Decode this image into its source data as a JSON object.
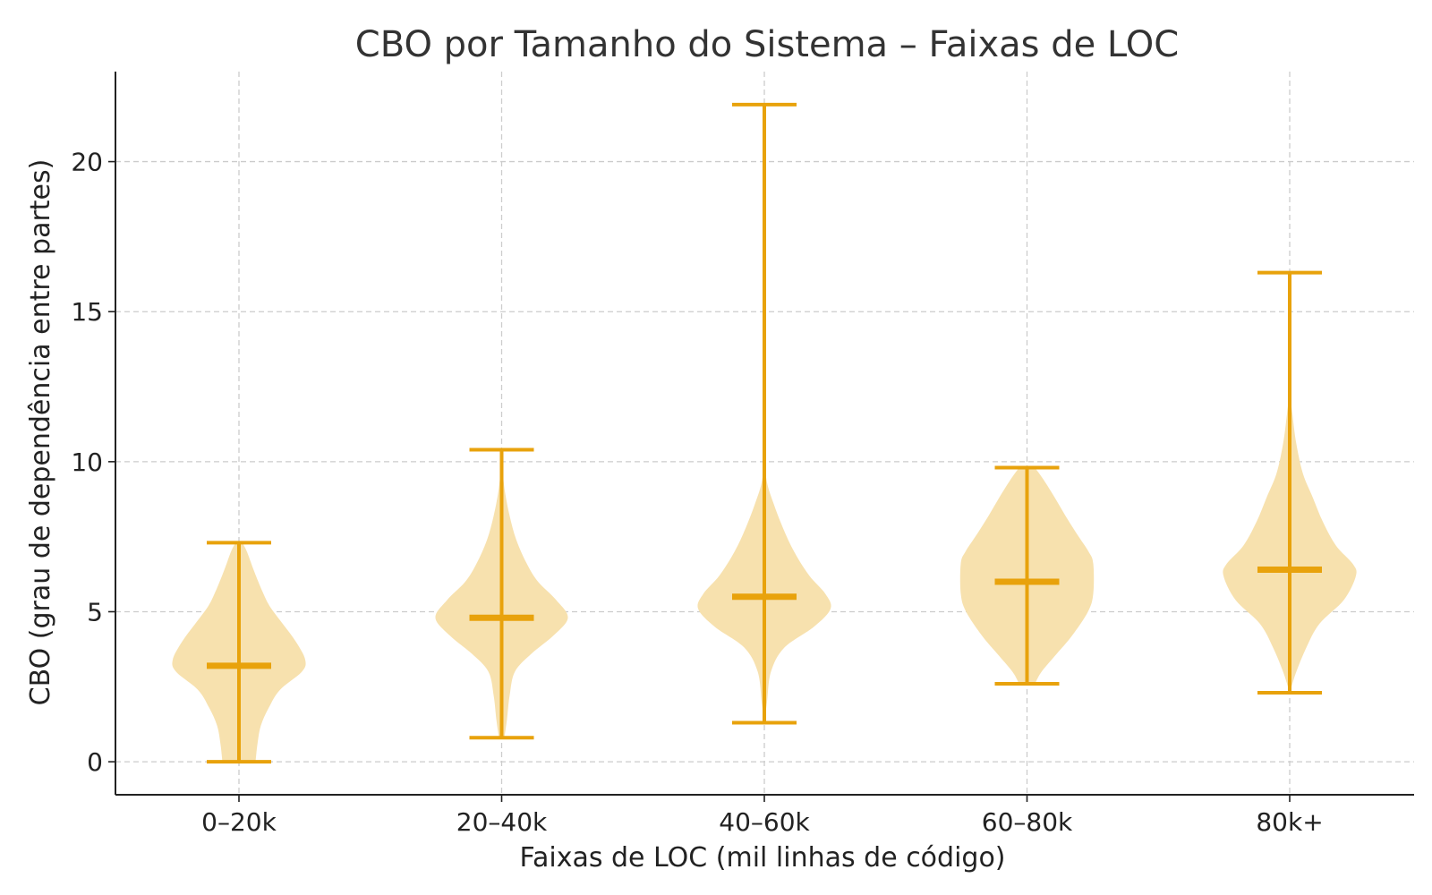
{
  "chart_data": {
    "type": "violin",
    "title": "CBO por Tamanho do Sistema – Faixas de LOC",
    "xlabel": "Faixas de LOC (mil linhas de código)",
    "ylabel": "CBO (grau de dependência entre partes)",
    "ylim": [
      -1.1,
      23
    ],
    "yticks": [
      0,
      5,
      10,
      15,
      20
    ],
    "grid": true,
    "categories": [
      "0–20k",
      "20–40k",
      "40–60k",
      "60–80k",
      "80k+"
    ],
    "colors": {
      "body": "#f7e1ae",
      "lines": "#e8a20c"
    },
    "violins": [
      {
        "category": "0–20k",
        "min": 0.0,
        "max": 7.3,
        "median": 3.2,
        "density": [
          [
            0.0,
            0.25
          ],
          [
            0.6,
            0.28
          ],
          [
            1.2,
            0.33
          ],
          [
            1.8,
            0.45
          ],
          [
            2.4,
            0.62
          ],
          [
            3.0,
            0.95
          ],
          [
            3.4,
            1.0
          ],
          [
            4.0,
            0.86
          ],
          [
            4.6,
            0.66
          ],
          [
            5.2,
            0.46
          ],
          [
            5.8,
            0.33
          ],
          [
            6.4,
            0.22
          ],
          [
            7.0,
            0.12
          ],
          [
            7.3,
            0.05
          ]
        ]
      },
      {
        "category": "20–40k",
        "min": 0.8,
        "max": 10.4,
        "median": 4.8,
        "density": [
          [
            0.8,
            0.04
          ],
          [
            1.4,
            0.08
          ],
          [
            2.2,
            0.12
          ],
          [
            3.0,
            0.2
          ],
          [
            3.6,
            0.45
          ],
          [
            4.2,
            0.78
          ],
          [
            4.8,
            1.0
          ],
          [
            5.4,
            0.82
          ],
          [
            6.0,
            0.55
          ],
          [
            6.6,
            0.38
          ],
          [
            7.4,
            0.22
          ],
          [
            8.2,
            0.12
          ],
          [
            9.0,
            0.05
          ],
          [
            9.6,
            0.02
          ],
          [
            10.4,
            0.0
          ]
        ]
      },
      {
        "category": "40–60k",
        "min": 1.3,
        "max": 21.9,
        "median": 5.5,
        "density": [
          [
            1.3,
            0.0
          ],
          [
            2.0,
            0.04
          ],
          [
            3.0,
            0.1
          ],
          [
            3.8,
            0.3
          ],
          [
            4.5,
            0.75
          ],
          [
            5.1,
            1.0
          ],
          [
            5.6,
            0.92
          ],
          [
            6.2,
            0.68
          ],
          [
            7.0,
            0.45
          ],
          [
            7.8,
            0.28
          ],
          [
            8.6,
            0.14
          ],
          [
            9.3,
            0.04
          ],
          [
            10.0,
            0.01
          ],
          [
            11.0,
            0.0
          ]
        ]
      },
      {
        "category": "60–80k",
        "min": 2.6,
        "max": 9.8,
        "median": 6.0,
        "density": [
          [
            2.6,
            0.12
          ],
          [
            3.0,
            0.22
          ],
          [
            3.6,
            0.45
          ],
          [
            4.2,
            0.68
          ],
          [
            5.0,
            0.92
          ],
          [
            5.6,
            1.0
          ],
          [
            6.6,
            1.0
          ],
          [
            7.0,
            0.93
          ],
          [
            7.6,
            0.75
          ],
          [
            8.2,
            0.58
          ],
          [
            8.8,
            0.42
          ],
          [
            9.4,
            0.25
          ],
          [
            9.8,
            0.12
          ]
        ]
      },
      {
        "category": "80k+",
        "min": 2.3,
        "max": 16.3,
        "median": 6.4,
        "density": [
          [
            2.3,
            0.0
          ],
          [
            3.0,
            0.1
          ],
          [
            3.8,
            0.25
          ],
          [
            4.6,
            0.45
          ],
          [
            5.4,
            0.82
          ],
          [
            6.2,
            1.0
          ],
          [
            6.6,
            0.95
          ],
          [
            7.2,
            0.7
          ],
          [
            8.0,
            0.5
          ],
          [
            8.8,
            0.35
          ],
          [
            9.6,
            0.2
          ],
          [
            10.6,
            0.1
          ],
          [
            11.6,
            0.04
          ],
          [
            12.4,
            0.0
          ]
        ]
      }
    ]
  }
}
